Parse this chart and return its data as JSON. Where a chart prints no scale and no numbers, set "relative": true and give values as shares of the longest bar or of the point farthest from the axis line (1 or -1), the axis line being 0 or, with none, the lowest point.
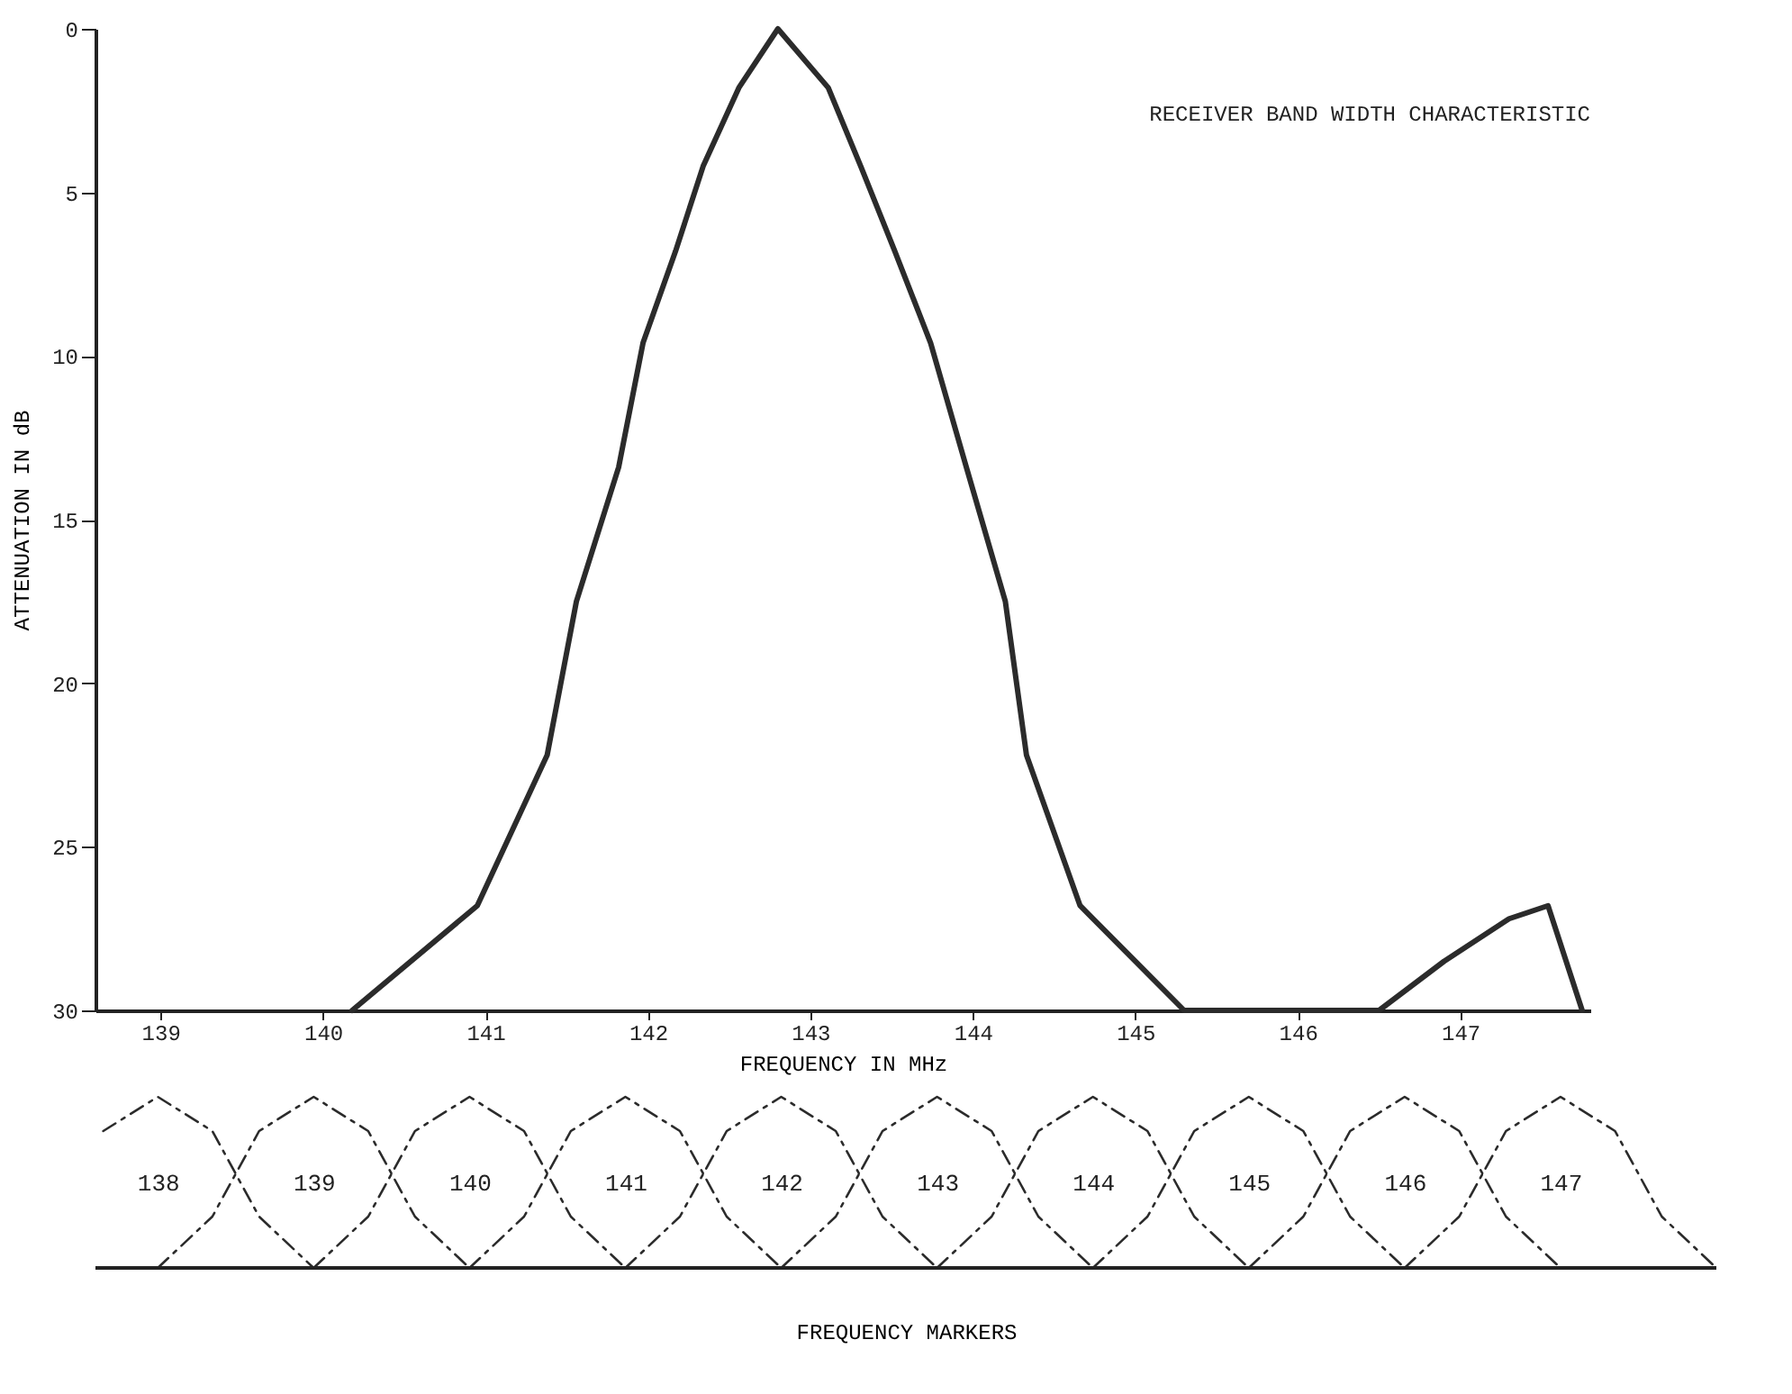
{
  "chart_data": [
    {
      "type": "line",
      "title": "RECEIVER BAND WIDTH CHARACTERISTIC",
      "xlabel": "FREQUENCY IN MHz",
      "ylabel": "ATTENUATION IN dB",
      "xlim": [
        138.6,
        147.8
      ],
      "xticks": [
        139,
        140,
        141,
        142,
        143,
        144,
        145,
        146,
        147
      ],
      "ylim": [
        30,
        0
      ],
      "yticks": [
        0,
        5,
        10,
        15,
        20,
        25,
        30
      ],
      "grid": false,
      "legend": false,
      "line_style": "solid",
      "marker": "none",
      "series": [
        {
          "color": "#2b2b2b",
          "x": [
            140.18,
            140.95,
            141.38,
            141.56,
            141.82,
            141.97,
            142.17,
            142.34,
            142.56,
            142.8,
            143.11,
            143.31,
            143.52,
            143.74,
            143.96,
            144.2,
            144.33,
            144.66,
            145.3,
            146.5,
            146.9,
            147.3,
            147.54,
            147.75
          ],
          "values": [
            30,
            26.8,
            22.2,
            17.5,
            13.4,
            9.6,
            6.8,
            4.2,
            1.8,
            0,
            1.8,
            4.2,
            6.8,
            9.6,
            13.4,
            17.5,
            22.2,
            26.8,
            30,
            30,
            28.5,
            27.2,
            26.8,
            30
          ]
        }
      ]
    },
    {
      "type": "line",
      "relative": true,
      "xlabel": "FREQUENCY MARKERS",
      "xlim": [
        137.6,
        148
      ],
      "xticks": [
        138,
        139,
        140,
        141,
        142,
        143,
        144,
        145,
        146,
        147
      ],
      "grid": false,
      "legend": false,
      "line_style": "dashed",
      "marker": "none",
      "series": [
        {
          "color": "#2b2b2b",
          "x": [
            137.65,
            138,
            138.35,
            138.65,
            139
          ],
          "values": [
            0.8,
            1,
            0.8,
            0.3,
            0
          ]
        },
        {
          "color": "#2b2b2b",
          "x": [
            138,
            138.35,
            138.65,
            139,
            139.35,
            139.65,
            140
          ],
          "values": [
            0,
            0.3,
            0.8,
            1,
            0.8,
            0.3,
            0
          ]
        },
        {
          "color": "#2b2b2b",
          "x": [
            139,
            139.35,
            139.65,
            140,
            140.35,
            140.65,
            141
          ],
          "values": [
            0,
            0.3,
            0.8,
            1,
            0.8,
            0.3,
            0
          ]
        },
        {
          "color": "#2b2b2b",
          "x": [
            140,
            140.35,
            140.65,
            141,
            141.35,
            141.65,
            142
          ],
          "values": [
            0,
            0.3,
            0.8,
            1,
            0.8,
            0.3,
            0
          ]
        },
        {
          "color": "#2b2b2b",
          "x": [
            141,
            141.35,
            141.65,
            142,
            142.35,
            142.65,
            143
          ],
          "values": [
            0,
            0.3,
            0.8,
            1,
            0.8,
            0.3,
            0
          ]
        },
        {
          "color": "#2b2b2b",
          "x": [
            142,
            142.35,
            142.65,
            143,
            143.35,
            143.65,
            144
          ],
          "values": [
            0,
            0.3,
            0.8,
            1,
            0.8,
            0.3,
            0
          ]
        },
        {
          "color": "#2b2b2b",
          "x": [
            143,
            143.35,
            143.65,
            144,
            144.35,
            144.65,
            145
          ],
          "values": [
            0,
            0.3,
            0.8,
            1,
            0.8,
            0.3,
            0
          ]
        },
        {
          "color": "#2b2b2b",
          "x": [
            144,
            144.35,
            144.65,
            145,
            145.35,
            145.65,
            146
          ],
          "values": [
            0,
            0.3,
            0.8,
            1,
            0.8,
            0.3,
            0
          ]
        },
        {
          "color": "#2b2b2b",
          "x": [
            145,
            145.35,
            145.65,
            146,
            146.35,
            146.65,
            147
          ],
          "values": [
            0,
            0.3,
            0.8,
            1,
            0.8,
            0.3,
            0
          ]
        },
        {
          "color": "#2b2b2b",
          "x": [
            146,
            146.35,
            146.65,
            147,
            147.35,
            147.65,
            148
          ],
          "values": [
            0,
            0.3,
            0.8,
            1,
            0.8,
            0.3,
            0
          ]
        }
      ]
    }
  ]
}
